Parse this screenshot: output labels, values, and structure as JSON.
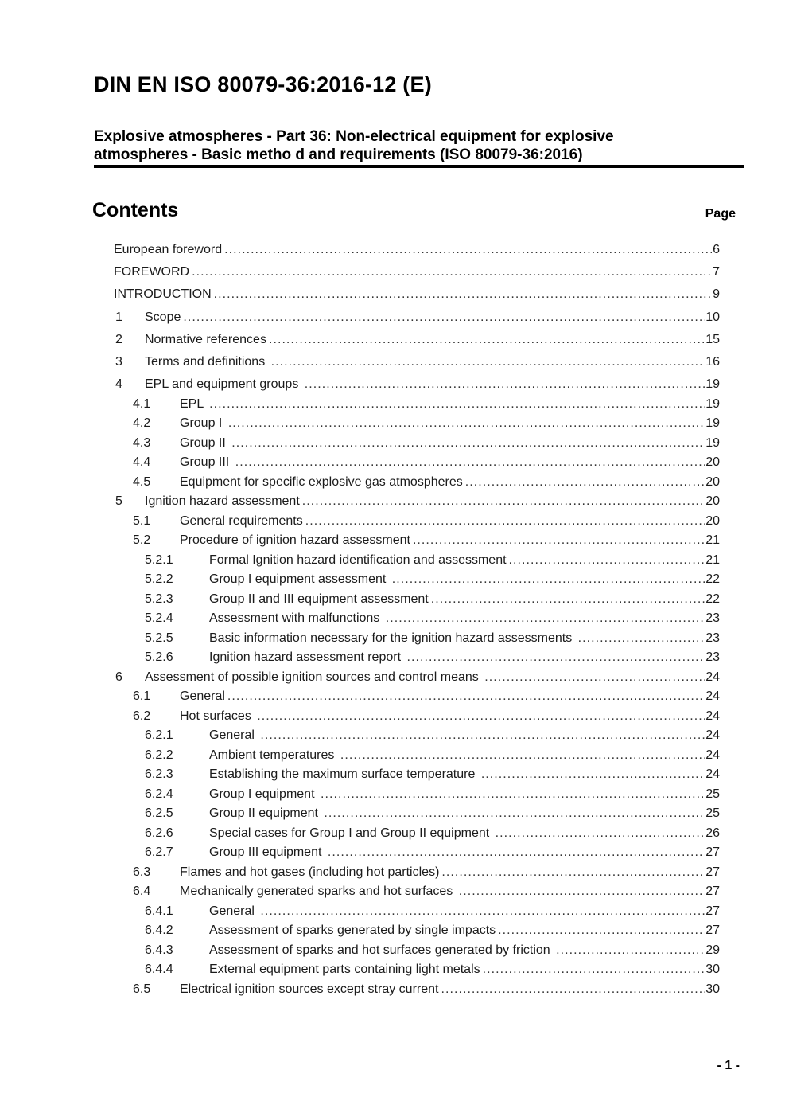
{
  "document": {
    "title": "DIN EN ISO 80079-36:2016-12 (E)",
    "subtitle_line1": "Explosive atmospheres - Part 36: Non-electrical equipment for explosive",
    "subtitle_line2": "atmospheres - Basic metho d and requirements (ISO 80079-36:2016)",
    "contents_heading": "Contents",
    "page_column_label": "Page",
    "footer_page_number": "- 1 -"
  },
  "toc": {
    "entries": [
      {
        "level": 0,
        "num": "",
        "label": "European foreword",
        "page": "6"
      },
      {
        "level": 0,
        "num": "",
        "label": "FOREWORD",
        "page": "7"
      },
      {
        "level": 0,
        "num": "",
        "label": "INTRODUCTION",
        "page": "9"
      },
      {
        "level": 1,
        "num": "1",
        "label": "Scope",
        "page": "10"
      },
      {
        "level": 1,
        "num": "2",
        "label": "Normative references",
        "page": "15"
      },
      {
        "level": 1,
        "num": "3",
        "label": "Terms and definitions ",
        "page": "16"
      },
      {
        "level": 1,
        "num": "4",
        "label": "EPL and equipment groups ",
        "page": "19"
      },
      {
        "level": 2,
        "num": "4.1",
        "label": "EPL ",
        "page": "19"
      },
      {
        "level": 2,
        "num": "4.2",
        "label": "Group I ",
        "page": "19"
      },
      {
        "level": 2,
        "num": "4.3",
        "label": "Group II ",
        "page": "19"
      },
      {
        "level": 2,
        "num": "4.4",
        "label": "Group III ",
        "page": "20"
      },
      {
        "level": 2,
        "num": "4.5",
        "label": "Equipment for specific explosive gas atmospheres",
        "page": "20"
      },
      {
        "level": 1,
        "num": "5",
        "label": "Ignition hazard assessment",
        "page": "20"
      },
      {
        "level": 2,
        "num": "5.1",
        "label": "General requirements",
        "page": "20"
      },
      {
        "level": 2,
        "num": "5.2",
        "label": "Procedure of ignition hazard assessment",
        "page": "21"
      },
      {
        "level": 3,
        "num": "5.2.1",
        "label": "Formal Ignition hazard identification and assessment",
        "page": "21"
      },
      {
        "level": 3,
        "num": "5.2.2",
        "label": "Group I equipment assessment ",
        "page": "22"
      },
      {
        "level": 3,
        "num": "5.2.3",
        "label": "Group II and III equipment assessment",
        "page": "22"
      },
      {
        "level": 3,
        "num": "5.2.4",
        "label": "Assessment with malfunctions ",
        "page": "23"
      },
      {
        "level": 3,
        "num": "5.2.5",
        "label": "Basic information necessary for the ignition hazard assessments ",
        "page": "23"
      },
      {
        "level": 3,
        "num": "5.2.6",
        "label": "Ignition hazard assessment report ",
        "page": "23"
      },
      {
        "level": 1,
        "num": "6",
        "label": "Assessment of possible ignition sources and control means ",
        "page": "24"
      },
      {
        "level": 2,
        "num": "6.1",
        "label": "General",
        "page": "24"
      },
      {
        "level": 2,
        "num": "6.2",
        "label": "Hot surfaces ",
        "page": "24"
      },
      {
        "level": 3,
        "num": "6.2.1",
        "label": "General ",
        "page": "24"
      },
      {
        "level": 3,
        "num": "6.2.2",
        "label": "Ambient temperatures ",
        "page": "24"
      },
      {
        "level": 3,
        "num": "6.2.3",
        "label": "Establishing the maximum surface temperature ",
        "page": "24"
      },
      {
        "level": 3,
        "num": "6.2.4",
        "label": "Group I equipment ",
        "page": "25"
      },
      {
        "level": 3,
        "num": "6.2.5",
        "label": "Group II equipment ",
        "page": "25"
      },
      {
        "level": 3,
        "num": "6.2.6",
        "label": "Special cases for Group I and Group II equipment ",
        "page": "26"
      },
      {
        "level": 3,
        "num": "6.2.7",
        "label": "Group III equipment ",
        "page": "27"
      },
      {
        "level": 2,
        "num": "6.3",
        "label": "Flames and hot gases (including hot particles)",
        "page": "27"
      },
      {
        "level": 2,
        "num": "6.4",
        "label": "Mechanically generated sparks and hot surfaces ",
        "page": "27"
      },
      {
        "level": 3,
        "num": "6.4.1",
        "label": "General ",
        "page": "27"
      },
      {
        "level": 3,
        "num": "6.4.2",
        "label": "Assessment of sparks generated by single impacts",
        "page": "27"
      },
      {
        "level": 3,
        "num": "6.4.3",
        "label": "Assessment of sparks and hot surfaces generated by friction ",
        "page": "29"
      },
      {
        "level": 3,
        "num": "6.4.4",
        "label": "External equipment parts containing light metals",
        "page": "30"
      },
      {
        "level": 2,
        "num": "6.5",
        "label": "Electrical ignition sources except stray current",
        "page": "30"
      }
    ]
  }
}
